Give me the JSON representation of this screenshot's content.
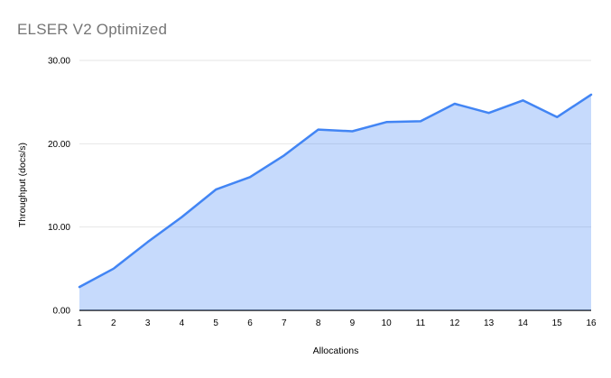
{
  "chart_data": {
    "type": "area",
    "title": "ELSER V2 Optimized",
    "xlabel": "Allocations",
    "ylabel": "Throughput (docs/s)",
    "categories": [
      1,
      2,
      3,
      4,
      5,
      6,
      7,
      8,
      9,
      10,
      11,
      12,
      13,
      14,
      15,
      16
    ],
    "series": [
      {
        "name": "Throughput (docs/s)",
        "values": [
          2.8,
          5.0,
          8.2,
          11.2,
          14.5,
          16.0,
          18.6,
          21.7,
          21.5,
          22.6,
          22.7,
          24.8,
          23.7,
          25.2,
          23.2,
          25.9
        ]
      }
    ],
    "ylim": [
      0,
      30
    ],
    "ytick_values": [
      0,
      10,
      20,
      30
    ],
    "ytick_labels": [
      "0.00",
      "10.00",
      "20.00",
      "30.00"
    ],
    "xtick_labels": [
      "1",
      "2",
      "3",
      "4",
      "5",
      "6",
      "7",
      "8",
      "9",
      "10",
      "11",
      "12",
      "13",
      "14",
      "15",
      "16"
    ],
    "grid": true,
    "legend": "none",
    "colors": {
      "line": "#4285f4",
      "fill": "#4285f4",
      "fill_opacity": 0.3,
      "gridline": "#e6e6e6",
      "axis_line": "#212121",
      "title_text": "#757575",
      "tick_text": "#000000"
    }
  }
}
